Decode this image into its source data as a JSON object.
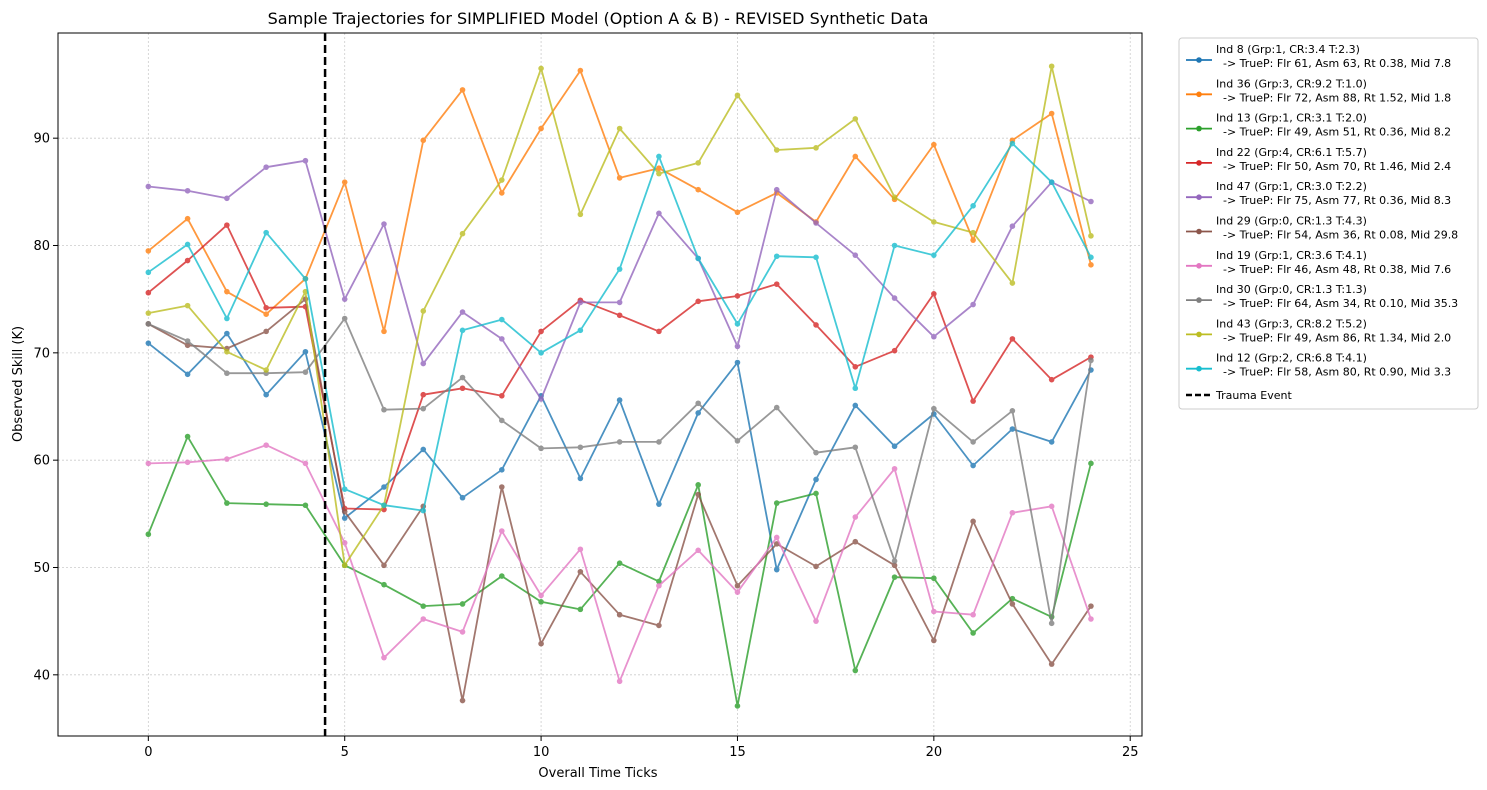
{
  "chart_data": {
    "type": "line",
    "title": "Sample Trajectories for SIMPLIFIED Model (Option A & B) - REVISED Synthetic Data",
    "xlabel": "Overall Time Ticks",
    "ylabel": "Observed Skill (K)",
    "xlim": [
      -2.3,
      25.3
    ],
    "ylim": [
      34.3,
      99.8
    ],
    "xticks": [
      0,
      5,
      10,
      15,
      20,
      25
    ],
    "yticks": [
      40,
      50,
      60,
      70,
      80,
      90
    ],
    "grid": true,
    "legend_position": "outside-right-top",
    "x": [
      0,
      1,
      2,
      3,
      4,
      5,
      6,
      7,
      8,
      9,
      10,
      11,
      12,
      13,
      14,
      15,
      16,
      17,
      18,
      19,
      20,
      21,
      22,
      23,
      24
    ],
    "series": [
      {
        "name": "Ind 8 (Grp:1, CR:3.4 T:2.3)",
        "detail": "  -> TrueP: Flr 61, Asm 63, Rt 0.38, Mid 7.8",
        "color": "#1f77b4",
        "values": [
          70.9,
          68.0,
          71.8,
          66.1,
          70.1,
          54.6,
          57.5,
          61.0,
          56.5,
          59.1,
          66.0,
          58.3,
          65.6,
          55.9,
          64.4,
          69.1,
          49.8,
          58.2,
          65.1,
          61.3,
          64.3,
          59.5,
          62.9,
          61.7,
          68.4
        ]
      },
      {
        "name": "Ind 36 (Grp:3, CR:9.2 T:1.0)",
        "detail": "  -> TrueP: Flr 72, Asm 88, Rt 1.52, Mid 1.8",
        "color": "#ff7f0e",
        "values": [
          79.5,
          82.5,
          75.7,
          73.6,
          76.9,
          85.9,
          72.0,
          89.8,
          94.5,
          84.9,
          90.9,
          96.3,
          86.3,
          87.2,
          85.2,
          83.1,
          84.9,
          82.2,
          88.3,
          84.3,
          89.4,
          80.5,
          89.8,
          92.3,
          78.2
        ]
      },
      {
        "name": "Ind 13 (Grp:1, CR:3.1 T:2.0)",
        "detail": "  -> TrueP: Flr 49, Asm 51, Rt 0.36, Mid 8.2",
        "color": "#2ca02c",
        "values": [
          53.1,
          62.2,
          56.0,
          55.9,
          55.8,
          50.2,
          48.4,
          46.4,
          46.6,
          49.2,
          46.8,
          46.1,
          50.4,
          48.7,
          57.7,
          37.1,
          56.0,
          56.9,
          40.4,
          49.1,
          49.0,
          43.9,
          47.1,
          45.4,
          59.7
        ]
      },
      {
        "name": "Ind 22 (Grp:4, CR:6.1 T:5.7)",
        "detail": "  -> TrueP: Flr 50, Asm 70, Rt 1.46, Mid 2.4",
        "color": "#d62728",
        "values": [
          75.6,
          78.6,
          81.9,
          74.2,
          74.3,
          55.5,
          55.4,
          66.1,
          66.7,
          66.0,
          72.0,
          74.9,
          73.5,
          72.0,
          74.8,
          75.3,
          76.4,
          72.6,
          68.7,
          70.2,
          75.5,
          65.5,
          71.3,
          67.5,
          69.6
        ]
      },
      {
        "name": "Ind 47 (Grp:1, CR:3.0 T:2.2)",
        "detail": "  -> TrueP: Flr 75, Asm 77, Rt 0.36, Mid 8.3",
        "color": "#9467bd",
        "values": [
          85.5,
          85.1,
          84.4,
          87.3,
          87.9,
          75.0,
          82.0,
          69.0,
          73.8,
          71.3,
          65.7,
          74.7,
          74.7,
          83.0,
          78.8,
          70.6,
          85.2,
          82.1,
          79.1,
          75.1,
          71.5,
          74.5,
          81.8,
          85.9,
          84.1
        ]
      },
      {
        "name": "Ind 29 (Grp:0, CR:1.3 T:4.3)",
        "detail": "  -> TrueP: Flr 54, Asm 36, Rt 0.08, Mid 29.8",
        "color": "#8c564b",
        "values": [
          72.7,
          70.7,
          70.4,
          72.0,
          75.0,
          55.2,
          50.2,
          55.7,
          37.6,
          57.5,
          42.9,
          49.6,
          45.6,
          44.6,
          56.8,
          48.3,
          52.2,
          50.1,
          52.4,
          50.2,
          43.2,
          54.3,
          46.6,
          41.0,
          46.4
        ]
      },
      {
        "name": "Ind 19 (Grp:1, CR:3.6 T:4.1)",
        "detail": "  -> TrueP: Flr 46, Asm 48, Rt 0.38, Mid 7.6",
        "color": "#e377c2",
        "values": [
          59.7,
          59.8,
          60.1,
          61.4,
          59.7,
          52.3,
          41.6,
          45.2,
          44.0,
          53.4,
          47.4,
          51.7,
          39.4,
          48.3,
          51.6,
          47.7,
          52.8,
          45.0,
          54.7,
          59.2,
          45.9,
          45.6,
          55.1,
          55.7,
          45.2
        ]
      },
      {
        "name": "Ind 30 (Grp:0, CR:1.3 T:1.3)",
        "detail": "  -> TrueP: Flr 64, Asm 34, Rt 0.10, Mid 35.3",
        "color": "#7f7f7f",
        "values": [
          72.7,
          71.1,
          68.1,
          68.1,
          68.2,
          73.2,
          64.7,
          64.8,
          67.7,
          63.7,
          61.1,
          61.2,
          61.7,
          61.7,
          65.3,
          61.8,
          64.9,
          60.7,
          61.2,
          50.6,
          64.8,
          61.7,
          64.6,
          44.8,
          69.3
        ]
      },
      {
        "name": "Ind 43 (Grp:3, CR:8.2 T:5.2)",
        "detail": "  -> TrueP: Flr 49, Asm 86, Rt 1.34, Mid 2.0",
        "color": "#bcbd22",
        "values": [
          73.7,
          74.4,
          70.1,
          68.4,
          75.7,
          50.2,
          55.8,
          73.9,
          81.1,
          86.1,
          96.5,
          82.9,
          90.9,
          86.7,
          87.7,
          94.0,
          88.9,
          89.1,
          91.8,
          84.5,
          82.2,
          81.2,
          76.5,
          96.7,
          80.9
        ]
      },
      {
        "name": "Ind 12 (Grp:2, CR:6.8 T:4.1)",
        "detail": "  -> TrueP: Flr 58, Asm 80, Rt 0.90, Mid 3.3",
        "color": "#17becf",
        "values": [
          77.5,
          80.1,
          73.2,
          81.2,
          76.9,
          57.3,
          55.8,
          55.3,
          72.1,
          73.1,
          70.0,
          72.1,
          77.8,
          88.3,
          78.8,
          72.7,
          79.0,
          78.9,
          66.7,
          80.0,
          79.1,
          83.7,
          89.5,
          85.9,
          78.9
        ]
      }
    ],
    "annotations": [
      {
        "type": "vline",
        "x": 4.5,
        "label": "Trauma Event",
        "color": "#000000",
        "style": "dashed"
      }
    ]
  }
}
